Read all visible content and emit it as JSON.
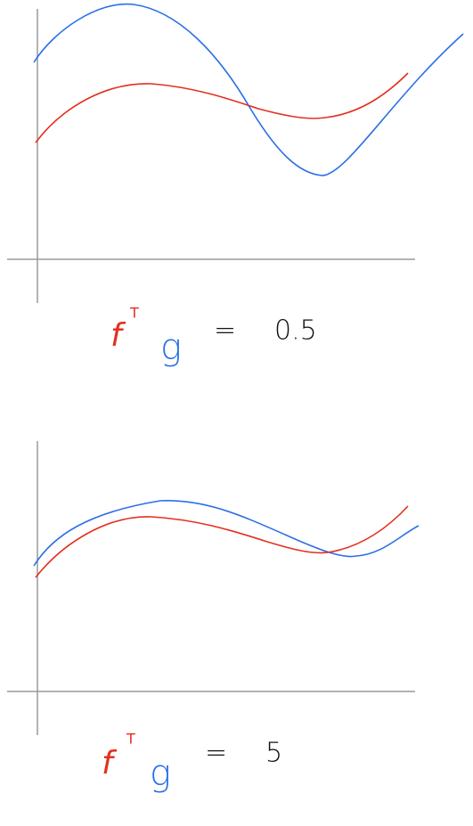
{
  "panels": [
    {
      "f": "f",
      "transpose": "T",
      "g": "g",
      "equals": "=",
      "value": 0.5
    },
    {
      "f": "f",
      "transpose": "T",
      "g": "g",
      "equals": "=",
      "value": 5
    }
  ]
}
